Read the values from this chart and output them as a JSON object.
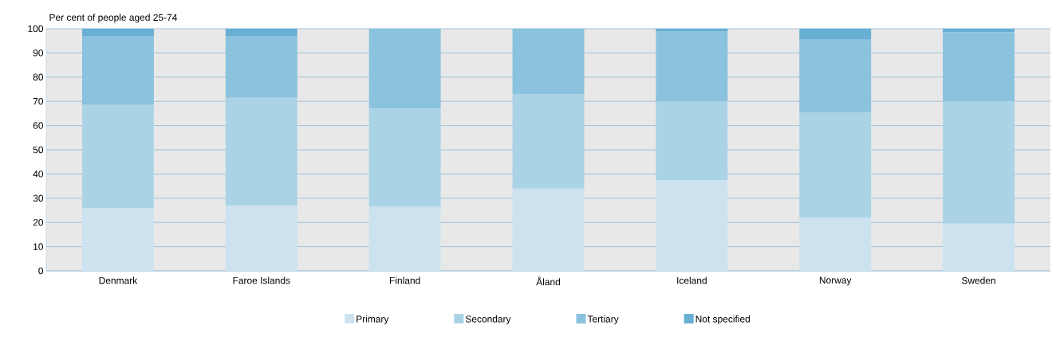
{
  "chart_data": {
    "type": "bar",
    "stacked": true,
    "ylabel": "Per cent of people aged 25-74",
    "categories": [
      "Denmark",
      "Faroe Islands",
      "Finland",
      "Åland",
      "Iceland",
      "Norway",
      "Sweden"
    ],
    "series": [
      {
        "name": "Primary",
        "color": "#cce3ef",
        "values": [
          26,
          27,
          26.5,
          34,
          37.5,
          22,
          19.5
        ]
      },
      {
        "name": "Secondary",
        "color": "#aad3e6",
        "values": [
          42.5,
          44.5,
          40.5,
          39,
          32.5,
          43.5,
          50.5
        ]
      },
      {
        "name": "Tertiary",
        "color": "#8bc2de",
        "values": [
          28.5,
          25.5,
          33,
          27,
          29,
          30,
          28.5
        ]
      },
      {
        "name": "Not specified",
        "color": "#67afd3",
        "values": [
          3,
          3,
          0,
          0,
          1,
          4.5,
          1.5
        ]
      }
    ],
    "ylim": [
      0,
      100
    ],
    "yticks": [
      0,
      10,
      20,
      30,
      40,
      50,
      60,
      70,
      80,
      90,
      100
    ],
    "grid": "y",
    "legend": "bottom"
  }
}
